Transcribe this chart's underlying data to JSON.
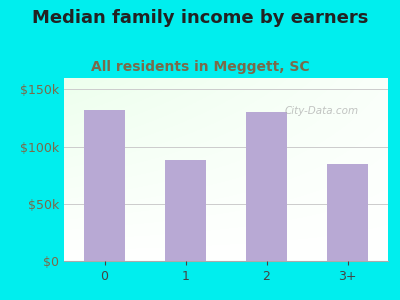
{
  "title": "Median family income by earners",
  "subtitle": "All residents in Meggett, SC",
  "categories": [
    "0",
    "1",
    "2",
    "3+"
  ],
  "values": [
    132000,
    88000,
    130000,
    85000
  ],
  "bar_color": "#b8a9d4",
  "title_fontsize": 13,
  "subtitle_fontsize": 10,
  "title_color": "#222222",
  "subtitle_color": "#7a6a4a",
  "background_outer": "#00eeee",
  "ylabel_color": "#7a6a4a",
  "xlabel_color": "#444444",
  "ylim": [
    0,
    160000
  ],
  "yticks": [
    0,
    50000,
    100000,
    150000
  ],
  "watermark": "City-Data.com",
  "grid_color": "#cccccc"
}
